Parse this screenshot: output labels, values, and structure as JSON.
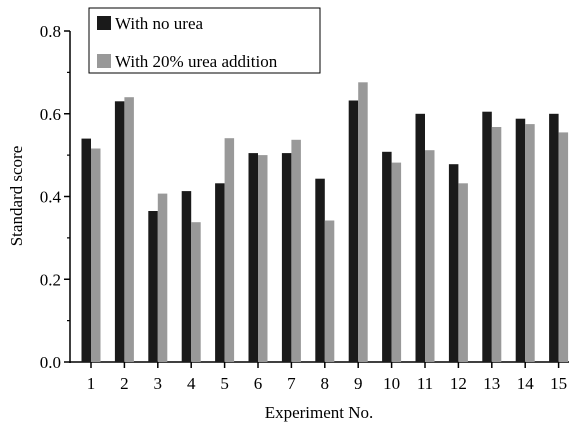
{
  "chart_data": {
    "type": "bar",
    "xlabel": "Experiment No.",
    "ylabel": "Standard score",
    "ylim": [
      0,
      0.8
    ],
    "yticks": [
      "0.0",
      "0.2",
      "0.4",
      "0.6",
      "0.8"
    ],
    "categories": [
      "1",
      "2",
      "3",
      "4",
      "5",
      "6",
      "7",
      "8",
      "9",
      "10",
      "11",
      "12",
      "13",
      "14",
      "15"
    ],
    "legend_position": "top-left",
    "series": [
      {
        "name": "With no urea",
        "color": "#1a1a1a",
        "values": [
          0.54,
          0.63,
          0.365,
          0.413,
          0.432,
          0.505,
          0.505,
          0.443,
          0.632,
          0.508,
          0.6,
          0.478,
          0.605,
          0.588,
          0.6
        ]
      },
      {
        "name": "With 20% urea addition",
        "color": "#999999",
        "values": [
          0.516,
          0.64,
          0.407,
          0.338,
          0.541,
          0.5,
          0.537,
          0.342,
          0.676,
          0.482,
          0.512,
          0.432,
          0.568,
          0.575,
          0.555
        ]
      }
    ]
  }
}
